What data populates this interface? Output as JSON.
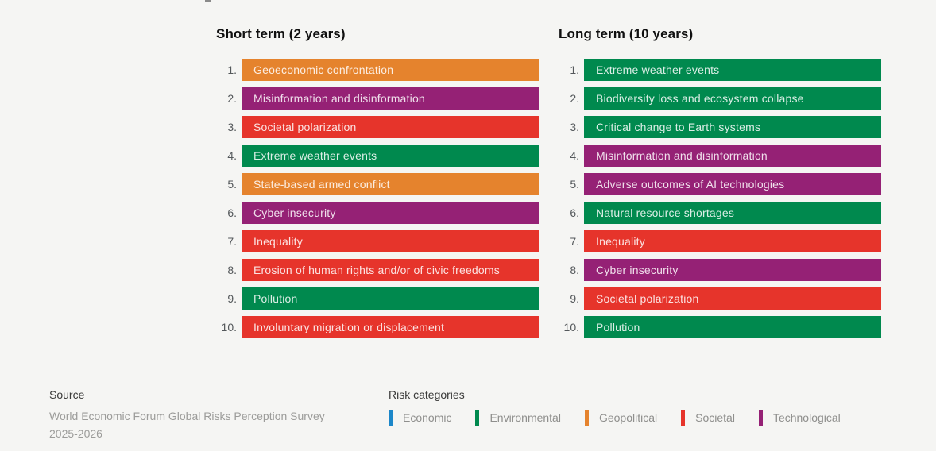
{
  "page": {
    "background_color": "#F5F5F3"
  },
  "category_colors": {
    "Economic": "#1C87C9",
    "Environmental": "#00894E",
    "Geopolitical": "#E5832D",
    "Societal": "#E6342B",
    "Technological": "#952175"
  },
  "columns": [
    {
      "title": "Short term (2 years)",
      "items": [
        {
          "rank": "1.",
          "label": "Geoeconomic confrontation",
          "category": "Geopolitical"
        },
        {
          "rank": "2.",
          "label": "Misinformation and disinformation",
          "category": "Technological"
        },
        {
          "rank": "3.",
          "label": "Societal polarization",
          "category": "Societal"
        },
        {
          "rank": "4.",
          "label": "Extreme weather events",
          "category": "Environmental"
        },
        {
          "rank": "5.",
          "label": "State-based armed conflict",
          "category": "Geopolitical"
        },
        {
          "rank": "6.",
          "label": "Cyber insecurity",
          "category": "Technological"
        },
        {
          "rank": "7.",
          "label": "Inequality",
          "category": "Societal"
        },
        {
          "rank": "8.",
          "label": "Erosion of human rights and/or of civic freedoms",
          "category": "Societal"
        },
        {
          "rank": "9.",
          "label": "Pollution",
          "category": "Environmental"
        },
        {
          "rank": "10.",
          "label": "Involuntary migration or displacement",
          "category": "Societal"
        }
      ]
    },
    {
      "title": "Long term (10 years)",
      "items": [
        {
          "rank": "1.",
          "label": "Extreme weather events",
          "category": "Environmental"
        },
        {
          "rank": "2.",
          "label": "Biodiversity loss and ecosystem collapse",
          "category": "Environmental"
        },
        {
          "rank": "3.",
          "label": "Critical change to Earth systems",
          "category": "Environmental"
        },
        {
          "rank": "4.",
          "label": "Misinformation and disinformation",
          "category": "Technological"
        },
        {
          "rank": "5.",
          "label": "Adverse outcomes of AI technologies",
          "category": "Technological"
        },
        {
          "rank": "6.",
          "label": "Natural resource shortages",
          "category": "Environmental"
        },
        {
          "rank": "7.",
          "label": "Inequality",
          "category": "Societal"
        },
        {
          "rank": "8.",
          "label": "Cyber insecurity",
          "category": "Technological"
        },
        {
          "rank": "9.",
          "label": "Societal polarization",
          "category": "Societal"
        },
        {
          "rank": "10.",
          "label": "Pollution",
          "category": "Environmental"
        }
      ]
    }
  ],
  "footer": {
    "source_heading": "Source",
    "source_line1": "World Economic Forum Global Risks Perception Survey",
    "source_line2": "2025-2026",
    "legend_heading": "Risk categories",
    "legend": [
      {
        "label": "Economic",
        "category": "Economic"
      },
      {
        "label": "Environmental",
        "category": "Environmental"
      },
      {
        "label": "Geopolitical",
        "category": "Geopolitical"
      },
      {
        "label": "Societal",
        "category": "Societal"
      },
      {
        "label": "Technological",
        "category": "Technological"
      }
    ]
  },
  "chart_data": {
    "type": "table",
    "description": "Two ranked top-10 risk lists, bars colored by risk category",
    "columns": [
      {
        "header": "Short term (2 years)",
        "rows": [
          {
            "rank": 1,
            "risk": "Geoeconomic confrontation",
            "category": "Geopolitical"
          },
          {
            "rank": 2,
            "risk": "Misinformation and disinformation",
            "category": "Technological"
          },
          {
            "rank": 3,
            "risk": "Societal polarization",
            "category": "Societal"
          },
          {
            "rank": 4,
            "risk": "Extreme weather events",
            "category": "Environmental"
          },
          {
            "rank": 5,
            "risk": "State-based armed conflict",
            "category": "Geopolitical"
          },
          {
            "rank": 6,
            "risk": "Cyber insecurity",
            "category": "Technological"
          },
          {
            "rank": 7,
            "risk": "Inequality",
            "category": "Societal"
          },
          {
            "rank": 8,
            "risk": "Erosion of human rights and/or of civic freedoms",
            "category": "Societal"
          },
          {
            "rank": 9,
            "risk": "Pollution",
            "category": "Environmental"
          },
          {
            "rank": 10,
            "risk": "Involuntary migration or displacement",
            "category": "Societal"
          }
        ]
      },
      {
        "header": "Long term (10 years)",
        "rows": [
          {
            "rank": 1,
            "risk": "Extreme weather events",
            "category": "Environmental"
          },
          {
            "rank": 2,
            "risk": "Biodiversity loss and ecosystem collapse",
            "category": "Environmental"
          },
          {
            "rank": 3,
            "risk": "Critical change to Earth systems",
            "category": "Environmental"
          },
          {
            "rank": 4,
            "risk": "Misinformation and disinformation",
            "category": "Technological"
          },
          {
            "rank": 5,
            "risk": "Adverse outcomes of AI technologies",
            "category": "Technological"
          },
          {
            "rank": 6,
            "risk": "Natural resource shortages",
            "category": "Environmental"
          },
          {
            "rank": 7,
            "risk": "Inequality",
            "category": "Societal"
          },
          {
            "rank": 8,
            "risk": "Cyber insecurity",
            "category": "Technological"
          },
          {
            "rank": 9,
            "risk": "Societal polarization",
            "category": "Societal"
          },
          {
            "rank": 10,
            "risk": "Pollution",
            "category": "Environmental"
          }
        ]
      }
    ],
    "legend": {
      "title": "Risk categories",
      "entries": [
        {
          "label": "Economic",
          "color": "#1C87C9"
        },
        {
          "label": "Environmental",
          "color": "#00894E"
        },
        {
          "label": "Geopolitical",
          "color": "#E5832D"
        },
        {
          "label": "Societal",
          "color": "#E6342B"
        },
        {
          "label": "Technological",
          "color": "#952175"
        }
      ],
      "position": "bottom"
    },
    "source": "World Economic Forum Global Risks Perception Survey 2025-2026"
  }
}
